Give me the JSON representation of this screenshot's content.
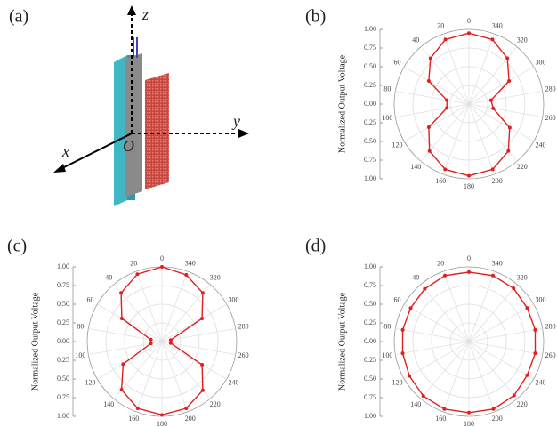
{
  "panel_a": {
    "label": "(a)",
    "x_axis": "x",
    "y_axis": "y",
    "z_axis": "z",
    "origin": "O"
  },
  "chart_data": [
    {
      "type": "polar",
      "panel": "(b)",
      "ylabel": "Normalized Output Voltage",
      "color": "#e02020",
      "theta": [
        0,
        20,
        40,
        60,
        80,
        100,
        120,
        140,
        160,
        180,
        200,
        220,
        240,
        260,
        280,
        300,
        320,
        340
      ],
      "values": [
        0.95,
        0.92,
        0.8,
        0.62,
        0.3,
        0.3,
        0.62,
        0.82,
        0.93,
        0.96,
        0.93,
        0.82,
        0.63,
        0.33,
        0.3,
        0.62,
        0.8,
        0.92
      ],
      "xticks": [
        0,
        20,
        40,
        60,
        80,
        100,
        120,
        140,
        160,
        180,
        200,
        220,
        240,
        260,
        280,
        300,
        320,
        340
      ],
      "ylim": [
        0,
        1
      ],
      "yticks": [
        {
          "value": 0,
          "label": "0.00"
        },
        {
          "value": 0.25,
          "label": "0.25"
        },
        {
          "value": 0.5,
          "label": "0.50"
        },
        {
          "value": 0.75,
          "label": "0.75"
        },
        {
          "value": 1,
          "label": "1.00"
        }
      ]
    },
    {
      "type": "polar",
      "panel": "(c)",
      "ylabel": "Normalized Output Voltage",
      "color": "#e02020",
      "theta": [
        0,
        20,
        40,
        60,
        80,
        100,
        120,
        140,
        160,
        180,
        200,
        220,
        240,
        260,
        280,
        300,
        320,
        340
      ],
      "values": [
        1,
        0.96,
        0.85,
        0.62,
        0.15,
        0.15,
        0.6,
        0.84,
        0.95,
        0.98,
        0.95,
        0.85,
        0.62,
        0.12,
        0.12,
        0.62,
        0.85,
        0.95
      ],
      "xticks": [
        0,
        20,
        40,
        60,
        80,
        100,
        120,
        140,
        160,
        180,
        200,
        220,
        240,
        260,
        280,
        300,
        320,
        340
      ],
      "ylim": [
        0,
        1
      ],
      "yticks": [
        {
          "value": 0,
          "label": "0.00"
        },
        {
          "value": 0.25,
          "label": "0.25"
        },
        {
          "value": 0.5,
          "label": "0.50"
        },
        {
          "value": 0.75,
          "label": "0.75"
        },
        {
          "value": 1,
          "label": "1.00"
        }
      ]
    },
    {
      "type": "polar",
      "panel": "(d)",
      "ylabel": "Normalized Output Voltage",
      "color": "#e02020",
      "theta": [
        0,
        20,
        40,
        60,
        80,
        100,
        120,
        140,
        160,
        180,
        200,
        220,
        240,
        260,
        280,
        300,
        320,
        340
      ],
      "values": [
        0.93,
        0.94,
        0.92,
        0.9,
        0.9,
        0.9,
        0.92,
        0.95,
        0.96,
        0.95,
        0.96,
        0.94,
        0.9,
        0.9,
        0.9,
        0.9,
        0.93,
        0.94
      ],
      "xticks": [
        0,
        20,
        40,
        60,
        80,
        100,
        120,
        140,
        160,
        180,
        200,
        220,
        240,
        260,
        280,
        300,
        320,
        340
      ],
      "ylim": [
        0,
        1
      ],
      "yticks": [
        {
          "value": 0,
          "label": "0.00"
        },
        {
          "value": 0.25,
          "label": "0.25"
        },
        {
          "value": 0.5,
          "label": "0.50"
        },
        {
          "value": 0.75,
          "label": "0.75"
        },
        {
          "value": 1,
          "label": "1.00"
        }
      ]
    }
  ]
}
